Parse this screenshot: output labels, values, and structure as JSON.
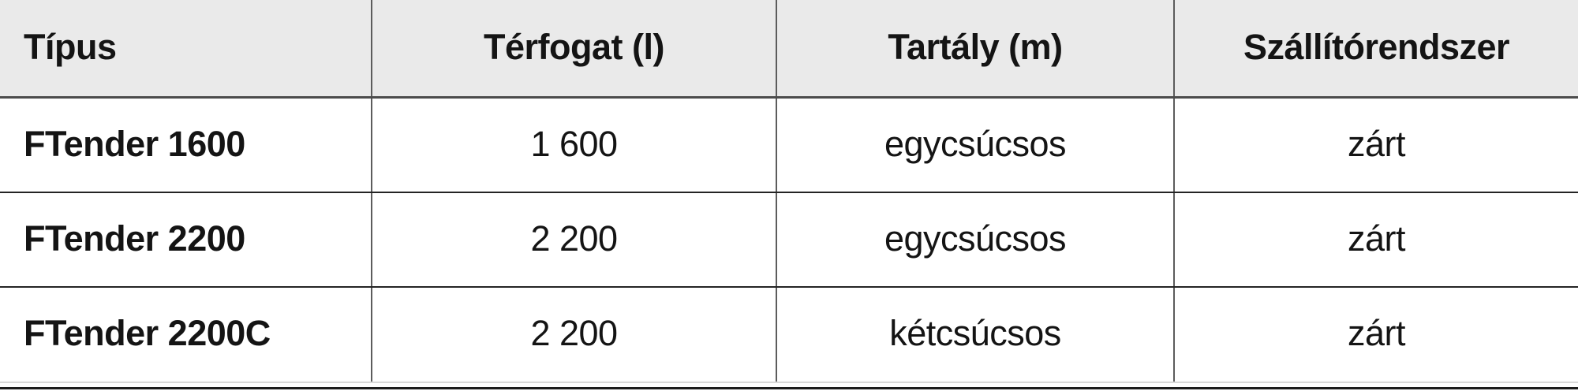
{
  "table": {
    "columns": [
      "Típus",
      "Térfogat (l)",
      "Tartály (m)",
      "Szállítórendszer"
    ],
    "rows": [
      {
        "cells": [
          "FTender 1600",
          "1 600",
          "egycsúcsos",
          "zárt"
        ]
      },
      {
        "cells": [
          "FTender 2200",
          "2 200",
          "egycsúcsos",
          "zárt"
        ]
      },
      {
        "cells": [
          "FTender 2200C",
          "2 200",
          "kétcsúcsos",
          "zárt"
        ]
      }
    ],
    "colors": {
      "header_bg": "#eaeaea",
      "text": "#141414",
      "column_separator": "#5c5c5c",
      "header_rule": "#4c4c4c",
      "row_rule": "#242424",
      "last_row_rule": "#d9d9d9",
      "bottom_rule": "#1c1c1c"
    }
  }
}
